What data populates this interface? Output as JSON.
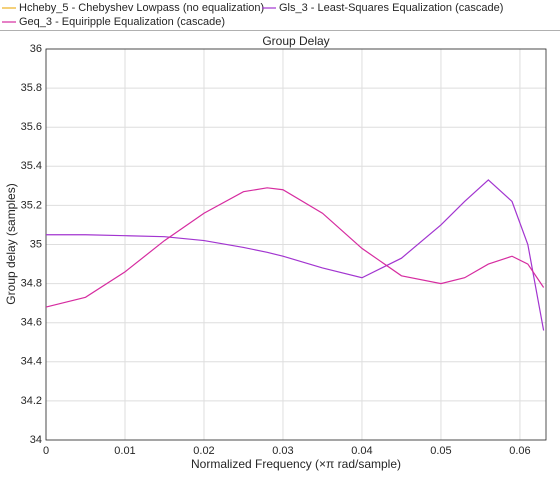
{
  "chart_data": {
    "type": "line",
    "title": "Group Delay",
    "x_label": "Normalized Frequency (×π rad/sample)",
    "y_label": "Group delay (samples)",
    "x": [
      0,
      0.005,
      0.01,
      0.015,
      0.02,
      0.025,
      0.028,
      0.03,
      0.035,
      0.04,
      0.045,
      0.05,
      0.053,
      0.056,
      0.059,
      0.061,
      0.063
    ],
    "series": [
      {
        "name": "Hcheby_5 - Chebyshev Lowpass (no equalization)",
        "color": "#edb120",
        "values": [
          null,
          null,
          null,
          null,
          null,
          null,
          null,
          null,
          null,
          null,
          null,
          null,
          null,
          null,
          null,
          null,
          null
        ]
      },
      {
        "name": "Gls_3 - Least-Squares Equalization (cascade)",
        "color": "#a235d0",
        "values": [
          35.05,
          35.05,
          35.045,
          35.04,
          35.02,
          34.985,
          34.96,
          34.94,
          34.88,
          34.83,
          34.93,
          35.1,
          35.22,
          35.33,
          35.22,
          35.0,
          34.56
        ]
      },
      {
        "name": "Geq_3 - Equiripple Equalization (cascade)",
        "color": "#d62ca0",
        "values": [
          34.68,
          34.73,
          34.86,
          35.02,
          35.16,
          35.27,
          35.29,
          35.28,
          35.16,
          34.98,
          34.84,
          34.8,
          34.83,
          34.9,
          34.94,
          34.9,
          34.78
        ]
      }
    ],
    "xlim": [
      0,
      0.0633
    ],
    "xticks": [
      0,
      0.01,
      0.02,
      0.03,
      0.04,
      0.05,
      0.06
    ],
    "ylim": [
      34,
      36
    ],
    "yticks": [
      34,
      34.2,
      34.4,
      34.6,
      34.8,
      35,
      35.2,
      35.4,
      35.6,
      35.8,
      36
    ],
    "grid": true
  }
}
